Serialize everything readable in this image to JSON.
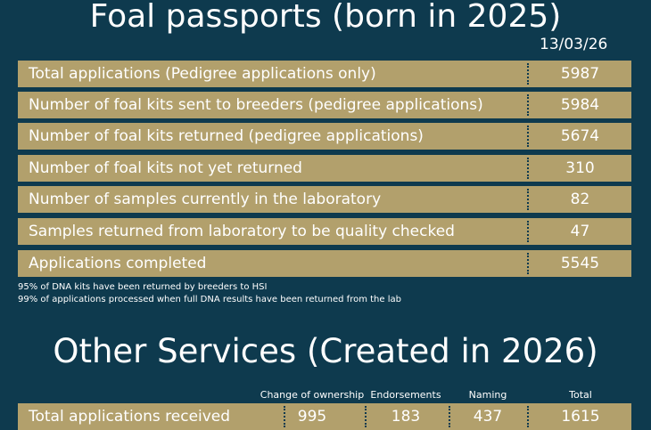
{
  "header": {
    "title": "Foal passports (born in 2025)",
    "date": "13/03/26"
  },
  "table": {
    "rows": [
      [
        "Total applications (Pedigree applications only)",
        5987
      ],
      [
        "Number of foal kits sent to breeders (pedigree applications)",
        5984
      ],
      [
        "Number of foal kits returned (pedigree applications)",
        5674
      ],
      [
        "Number of foal kits not yet returned",
        310
      ],
      [
        "Number of samples currently in the laboratory",
        82
      ],
      [
        "Samples returned from laboratory to be quality checked",
        47
      ],
      [
        "Applications completed",
        5545
      ]
    ]
  },
  "notes": [
    "95% of DNA kits have been returned by breeders to HSI",
    "99% of applications processed when full DNA results have been returned from the lab"
  ],
  "other": {
    "title": "Other Services (Created in 2026)",
    "columns": [
      "Change of ownership",
      "Endorsements",
      "Naming",
      "Total"
    ],
    "rows": [
      [
        "Total applications received",
        995,
        183,
        437,
        1615
      ]
    ]
  }
}
